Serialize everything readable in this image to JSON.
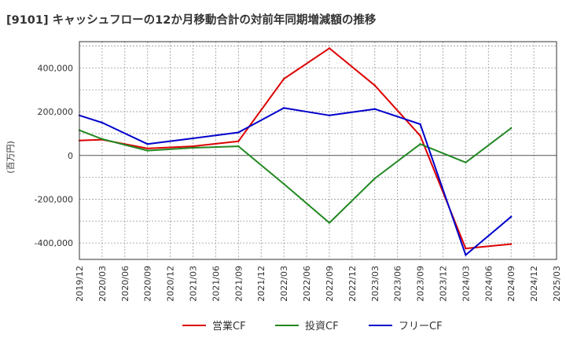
{
  "chart_data": {
    "type": "line",
    "title": "[9101]  キャッシュフローの12か月移動合計の対前年同期増減額の推移",
    "ylabel": "(百万円)",
    "xlabel": "",
    "x": [
      "2019/12",
      "2020/03",
      "2020/06",
      "2020/09",
      "2020/12",
      "2021/03",
      "2021/06",
      "2021/09",
      "2021/12",
      "2022/03",
      "2022/06",
      "2022/09",
      "2022/12",
      "2023/03",
      "2023/06",
      "2023/09",
      "2023/12",
      "2024/03",
      "2024/06",
      "2024/09",
      "2024/12",
      "2025/03"
    ],
    "ylim": [
      -475000,
      520000
    ],
    "yticks": [
      -400000,
      -200000,
      0,
      200000,
      400000
    ],
    "ytick_labels": [
      "-400,000",
      "-200,000",
      "0",
      "200,000",
      "400,000"
    ],
    "grid": true,
    "legend_position": "bottom-center",
    "series": [
      {
        "name": "営業CF",
        "color": "#dd0000",
        "values": [
          68000,
          72000,
          null,
          32000,
          null,
          42000,
          null,
          65000,
          null,
          350000,
          null,
          490000,
          null,
          320000,
          null,
          90000,
          null,
          -425000,
          null,
          -405000,
          null,
          null
        ]
      },
      {
        "name": "投資CF",
        "color": "#228822",
        "values": [
          115000,
          75000,
          null,
          22000,
          null,
          35000,
          null,
          42000,
          null,
          -130000,
          null,
          -308000,
          null,
          -105000,
          null,
          52000,
          null,
          -32000,
          null,
          125000,
          null,
          null
        ]
      },
      {
        "name": "フリーCF",
        "color": "#0000cc",
        "values": [
          183000,
          150000,
          null,
          52000,
          null,
          78000,
          null,
          105000,
          null,
          217000,
          null,
          183000,
          null,
          212000,
          null,
          143000,
          null,
          -455000,
          null,
          -280000,
          null,
          null
        ]
      }
    ]
  }
}
